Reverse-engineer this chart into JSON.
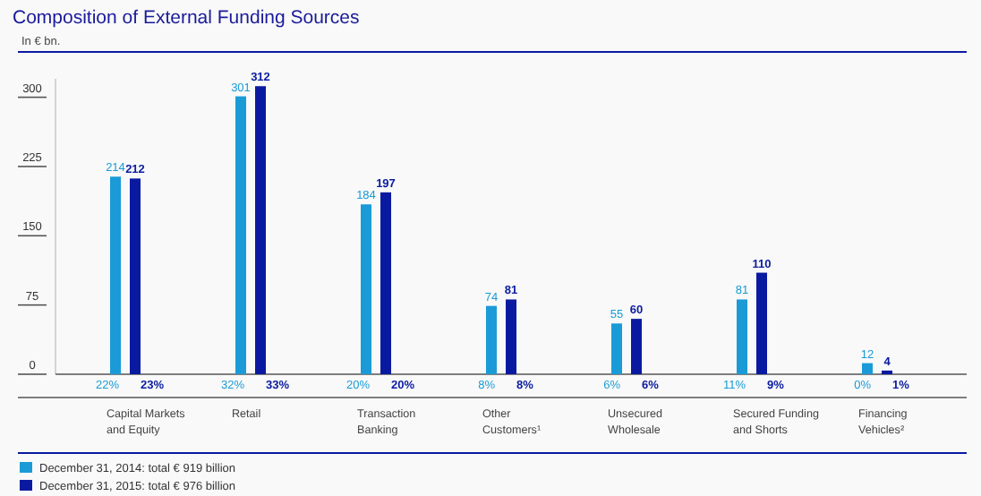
{
  "chart_data": {
    "type": "bar",
    "title": "Composition of External Funding Sources",
    "ylabel": "In € bn.",
    "categories": [
      "Capital Markets and Equity",
      "Retail",
      "Transaction Banking",
      "Other Customers¹",
      "Unsecured Wholesale",
      "Secured Funding and Shorts",
      "Financing Vehicles²"
    ],
    "series": [
      {
        "name": "December 31, 2014: total € 919 billion",
        "color": "#1a9bd7",
        "values": [
          214,
          301,
          184,
          74,
          55,
          81,
          12
        ]
      },
      {
        "name": "December 31, 2015: total € 976 billion",
        "color": "#0a1aa0",
        "values": [
          212,
          312,
          197,
          81,
          60,
          110,
          4
        ]
      }
    ],
    "ylim": [
      0,
      320
    ],
    "yticks": [
      0,
      75,
      150,
      225,
      300
    ],
    "data_labels": true,
    "legend": "bottom left",
    "annotations": [
      "22%",
      "23%",
      "32%",
      "33%",
      "20%",
      "20%",
      "8%",
      "8%",
      "6%",
      "6%",
      "11%",
      "9%",
      "0%",
      "1%"
    ]
  }
}
